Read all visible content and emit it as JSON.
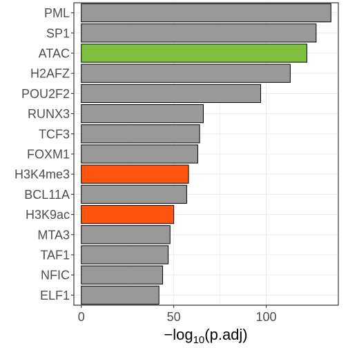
{
  "chart_data": {
    "type": "bar",
    "orientation": "horizontal",
    "categories": [
      "PML",
      "SP1",
      "ATAC",
      "H2AFZ",
      "POU2F2",
      "RUNX3",
      "TCF3",
      "FOXM1",
      "H3K4me3",
      "BCL11A",
      "H3K9ac",
      "MTA3",
      "TAF1",
      "NFIC",
      "ELF1"
    ],
    "values": [
      135,
      127,
      122,
      113,
      97,
      66,
      64,
      63,
      58,
      57,
      50,
      48,
      47,
      44,
      42
    ],
    "bar_colors": [
      "#999999",
      "#999999",
      "#7fbf3f",
      "#999999",
      "#999999",
      "#999999",
      "#999999",
      "#999999",
      "#ff5511",
      "#999999",
      "#ff5511",
      "#999999",
      "#999999",
      "#999999",
      "#999999"
    ],
    "xlim": [
      -4,
      139
    ],
    "xticks": [
      0,
      50,
      100
    ],
    "xtick_labels": [
      "0",
      "50",
      "100"
    ],
    "xlabel": {
      "prefix": "−log",
      "subscript": "10",
      "suffix": "(p.adj)"
    },
    "grid": true,
    "legend": "none"
  },
  "colors": {
    "grid": "#ebebeb",
    "bar_outline": "#000000",
    "tick_text": "#4d4d4d"
  }
}
